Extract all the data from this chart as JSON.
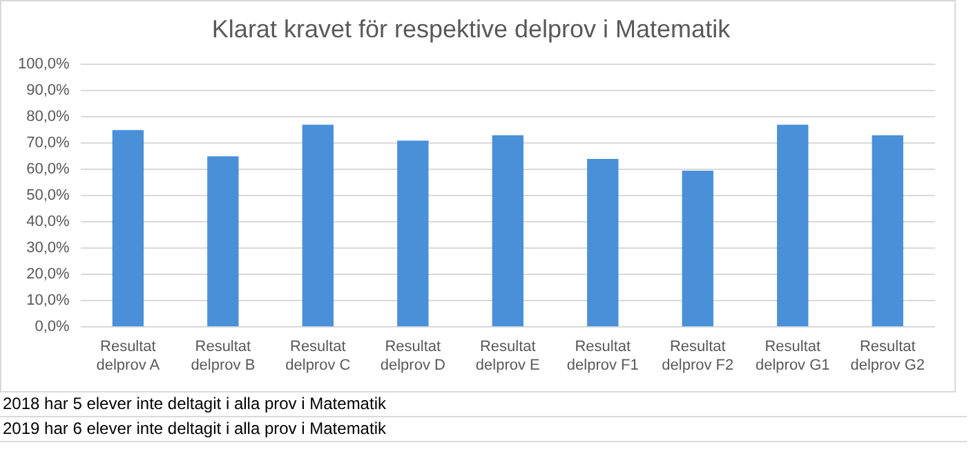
{
  "chart_data": {
    "type": "bar",
    "title": "Klarat kravet för respektive delprov i Matematik",
    "categories": [
      "Resultat delprov A",
      "Resultat delprov B",
      "Resultat delprov C",
      "Resultat delprov D",
      "Resultat delprov E",
      "Resultat delprov F1",
      "Resultat delprov F2",
      "Resultat delprov G1",
      "Resultat delprov G2"
    ],
    "values": [
      75,
      65,
      77,
      71,
      73,
      64,
      59.5,
      77,
      73
    ],
    "color": "#4a90d9",
    "ylim": [
      0,
      100
    ],
    "yticks": [
      {
        "value": 0,
        "label": "0,0%"
      },
      {
        "value": 10,
        "label": "10,0%"
      },
      {
        "value": 20,
        "label": "20,0%"
      },
      {
        "value": 30,
        "label": "30,0%"
      },
      {
        "value": 40,
        "label": "40,0%"
      },
      {
        "value": 50,
        "label": "50,0%"
      },
      {
        "value": 60,
        "label": "60,0%"
      },
      {
        "value": 70,
        "label": "70,0%"
      },
      {
        "value": 80,
        "label": "80,0%"
      },
      {
        "value": 90,
        "label": "90,0%"
      },
      {
        "value": 100,
        "label": "100,0%"
      }
    ],
    "grid": "y",
    "annotations": [
      "2018 har 5 elever inte deltagit i alla prov i Matematik",
      "2019 har 6 elever inte deltagit i alla prov i Matematik"
    ]
  }
}
